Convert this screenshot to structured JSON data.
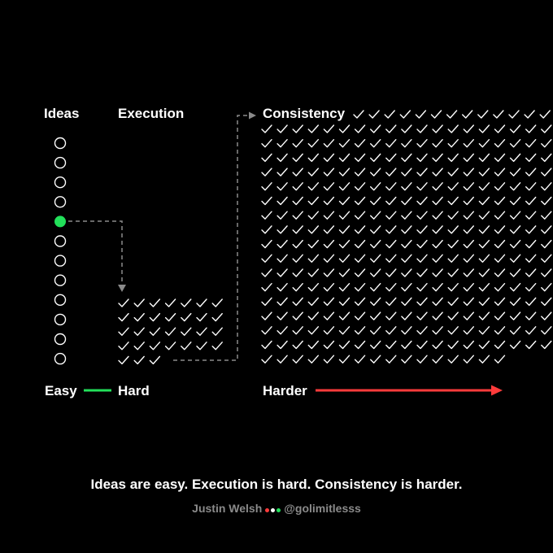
{
  "headings": {
    "ideas": "Ideas",
    "execution": "Execution",
    "consistency": "Consistency"
  },
  "stages": {
    "easy": "Easy",
    "hard": "Hard",
    "harder": "Harder"
  },
  "ideas": {
    "count": 12,
    "selected_index": 4,
    "selected_color": "#22e05a"
  },
  "execution": {
    "checks": 31
  },
  "consistency": {
    "checks": 333
  },
  "colors": {
    "easy_line": "#22e05a",
    "hard_line_start": "#3fcf6a",
    "hard_line_end": "#c8815a",
    "harder_line": "#ff3b3b",
    "connector": "#8a8a8a"
  },
  "caption": "Ideas are easy. Execution is hard. Consistency is harder.",
  "byline": {
    "author": "Justin Welsh",
    "handle": "@golimitlesss",
    "dot_colors": [
      "#ff3b3b",
      "#ffffff",
      "#22e05a"
    ]
  }
}
